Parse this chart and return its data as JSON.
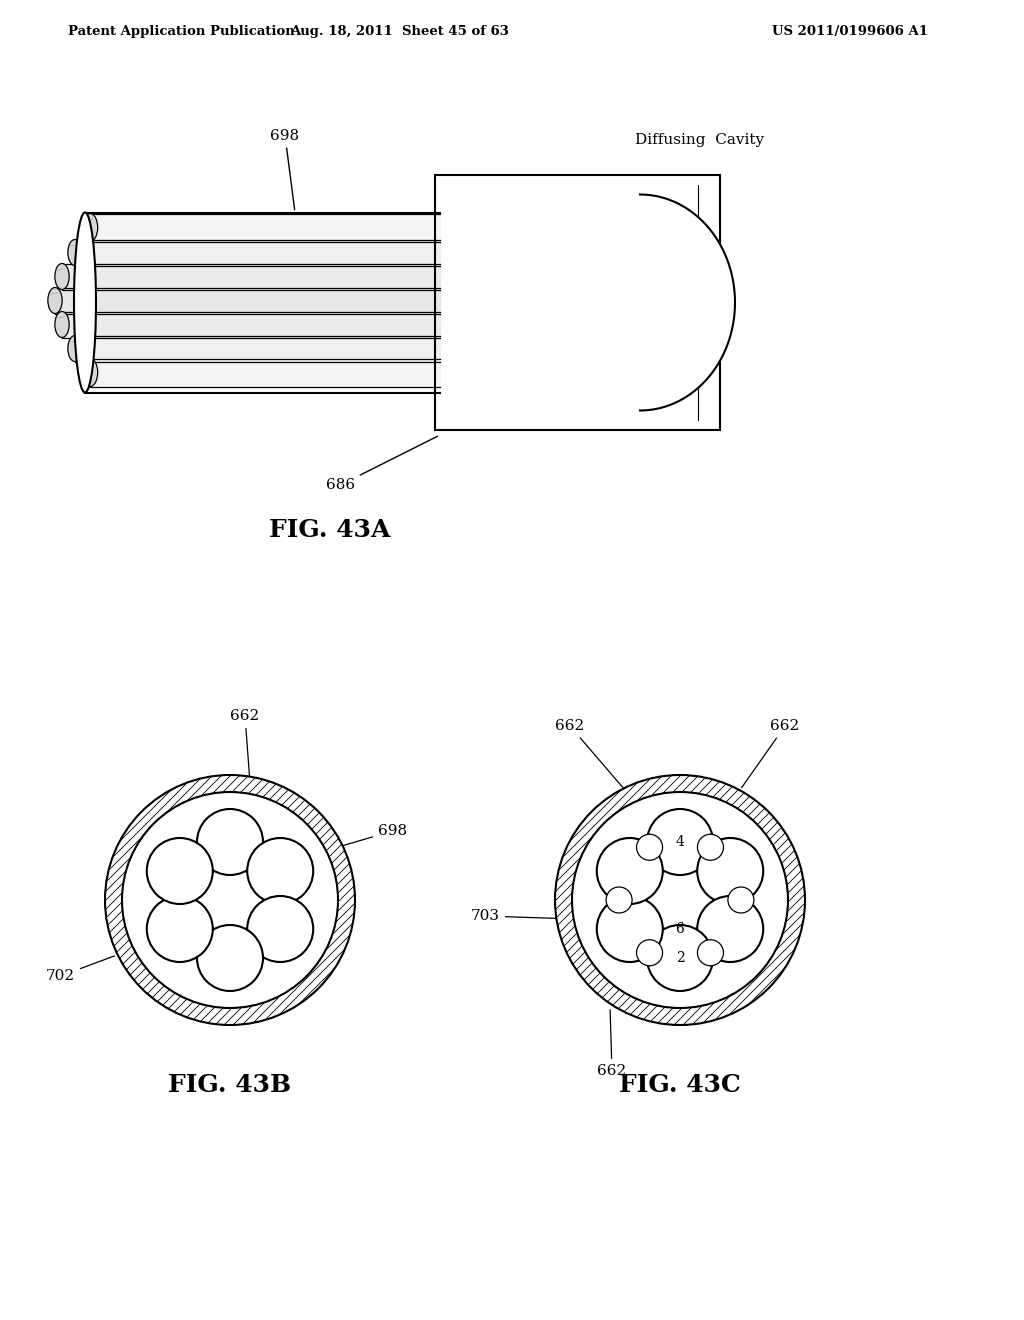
{
  "header_left": "Patent Application Publication",
  "header_mid": "Aug. 18, 2011  Sheet 45 of 63",
  "header_right": "US 2011/0199606 A1",
  "fig43a_label": "FIG. 43A",
  "fig43b_label": "FIG. 43B",
  "fig43c_label": "FIG. 43C",
  "diffusing_cavity_label": "Diffusing  Cavity",
  "label_698_43a": "698",
  "label_686": "686",
  "label_662_43b": "662",
  "label_698_43b": "698",
  "label_702": "702",
  "label_662_43c_tl": "662",
  "label_662_43c_tr": "662",
  "label_662_43c_bl": "662",
  "label_703": "703",
  "label_2": "2",
  "label_4": "4",
  "label_6": "6",
  "bg_color": "#ffffff",
  "line_color": "#000000"
}
